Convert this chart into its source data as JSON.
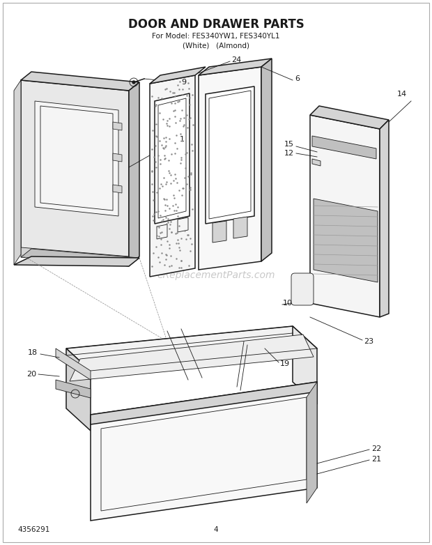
{
  "title": "DOOR AND DRAWER PARTS",
  "subtitle1": "For Model: FES340YW1, FES340YL1",
  "subtitle2": "(White)   (Almond)",
  "part_number": "4356291",
  "page_number": "4",
  "watermark": "eReplacementParts.com",
  "bg": "#ffffff",
  "lc": "#1a1a1a",
  "wc": "#bbbbbb",
  "gray1": "#e8e8e8",
  "gray2": "#d4d4d4",
  "gray3": "#c0c0c0",
  "stipple": "#aaaaaa"
}
